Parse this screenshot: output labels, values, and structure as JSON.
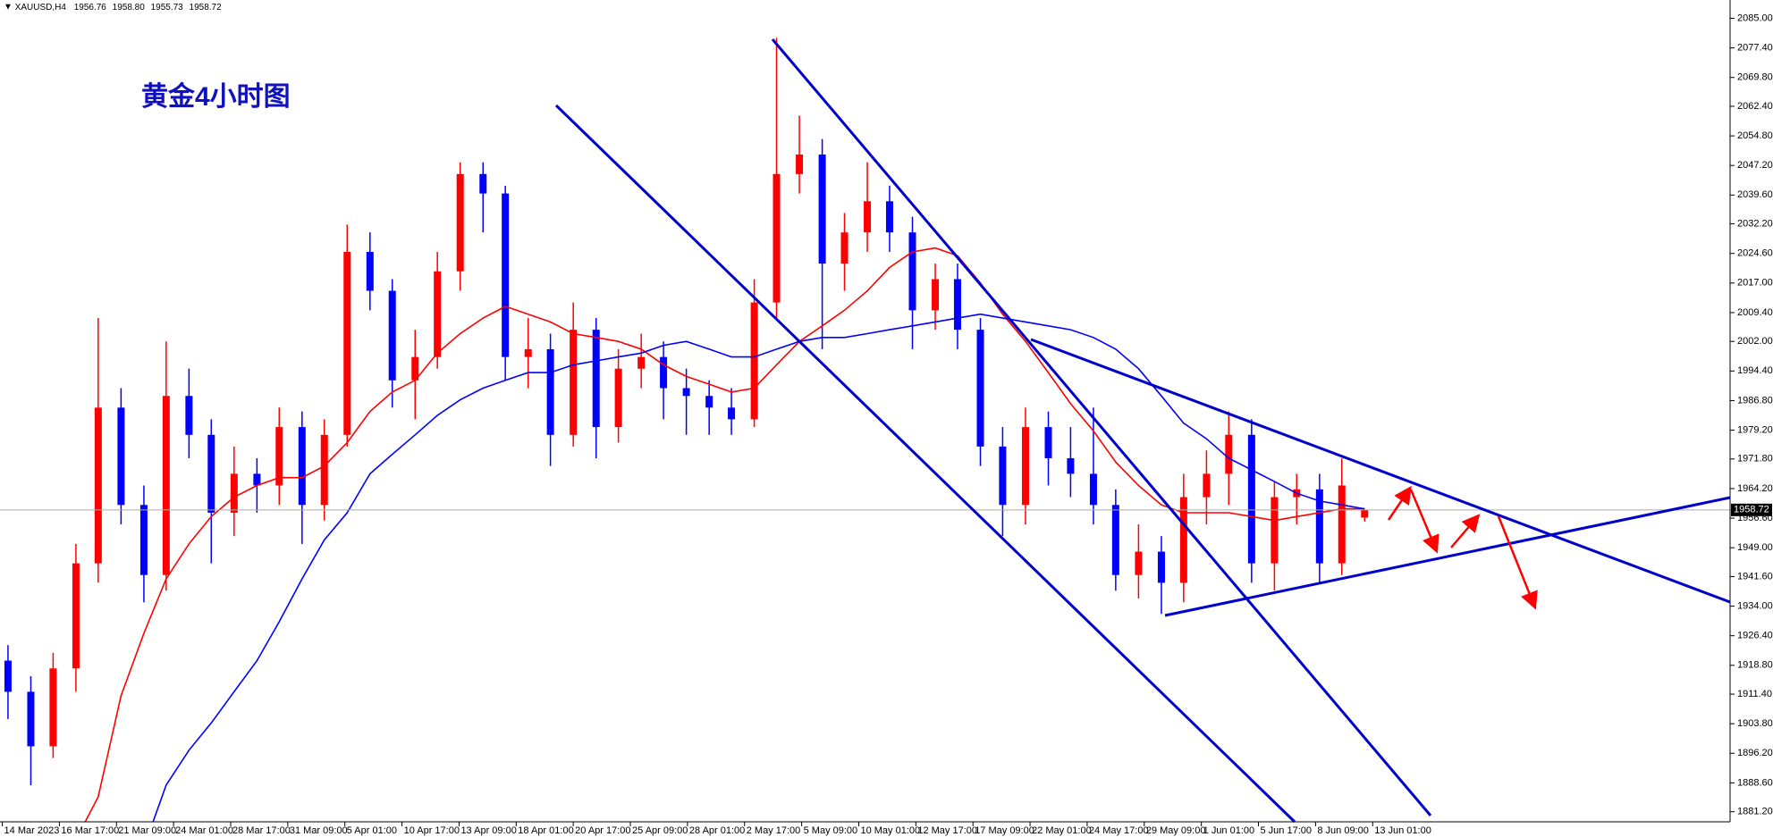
{
  "header": {
    "symbol": "XAUUSD,H4",
    "ohlc": [
      "1956.76",
      "1958.80",
      "1955.73",
      "1958.72"
    ]
  },
  "chart_data": {
    "type": "candlestick",
    "title": "黄金4小时图",
    "x": [
      0.1,
      0.5,
      0.89,
      1.29,
      1.68,
      2.08,
      2.48,
      2.87,
      3.27,
      3.66,
      4.06,
      4.46,
      4.85,
      5.25,
      5.64,
      6.04,
      6.44,
      6.83,
      7.23,
      7.62,
      8.02,
      8.42,
      8.81,
      9.21,
      9.6,
      10.0,
      10.4,
      10.79,
      11.19,
      11.58,
      11.98,
      12.38,
      12.77,
      13.17,
      13.56,
      13.96,
      14.36,
      14.75,
      15.15,
      15.54,
      15.94,
      16.34,
      16.73,
      17.13,
      17.52,
      17.92,
      18.32,
      18.71,
      19.11,
      19.5,
      19.9,
      20.3,
      20.69,
      21.09,
      21.48,
      21.88,
      22.28,
      22.67,
      23.07,
      23.46,
      23.86
    ],
    "open": [
      1920,
      1912,
      1898,
      1918,
      1945,
      1985,
      1960,
      1942,
      1988,
      1978,
      1958,
      1968,
      1965,
      1980,
      1960,
      1978,
      2025,
      2015,
      1992,
      1998,
      2020,
      2045,
      2040,
      1998,
      2000,
      1978,
      2005,
      1980,
      1995,
      1998,
      1990,
      1988,
      1985,
      1982,
      2012,
      2045,
      2050,
      2022,
      2030,
      2038,
      2030,
      2010,
      2018,
      2005,
      1975,
      1960,
      1980,
      1972,
      1968,
      1960,
      1942,
      1948,
      1940,
      1962,
      1968,
      1978,
      1945,
      1962,
      1964,
      1945,
      1956.76
    ],
    "high": [
      1924,
      1916,
      1922,
      1950,
      2008,
      1990,
      1965,
      2002,
      1995,
      1982,
      1975,
      1972,
      1985,
      1984,
      1982,
      2032,
      2030,
      2018,
      2005,
      2025,
      2048,
      2048,
      2042,
      2008,
      2004,
      2012,
      2008,
      2000,
      2004,
      2002,
      1995,
      1992,
      1990,
      2018,
      2080,
      2060,
      2054,
      2035,
      2048,
      2042,
      2034,
      2022,
      2022,
      2008,
      1980,
      1985,
      1984,
      1980,
      1985,
      1964,
      1955,
      1952,
      1968,
      1974,
      1984,
      1982,
      1966,
      1968,
      1968,
      1972,
      1958.8
    ],
    "low": [
      1905,
      1888,
      1895,
      1912,
      1940,
      1955,
      1935,
      1938,
      1972,
      1945,
      1952,
      1958,
      1960,
      1950,
      1956,
      1975,
      2010,
      1985,
      1982,
      1995,
      2015,
      2030,
      1992,
      1990,
      1970,
      1975,
      1972,
      1976,
      1990,
      1982,
      1978,
      1978,
      1978,
      1980,
      2008,
      2040,
      2000,
      2015,
      2025,
      2025,
      2000,
      2005,
      2000,
      1970,
      1952,
      1955,
      1965,
      1962,
      1955,
      1938,
      1936,
      1932,
      1935,
      1955,
      1960,
      1940,
      1938,
      1955,
      1940,
      1942,
      1955.73
    ],
    "close": [
      1912,
      1898,
      1918,
      1945,
      1985,
      1960,
      1942,
      1988,
      1978,
      1958,
      1968,
      1965,
      1980,
      1960,
      1978,
      2025,
      2015,
      1992,
      1998,
      2020,
      2045,
      2040,
      1998,
      2000,
      1978,
      2005,
      1980,
      1995,
      1998,
      1990,
      1988,
      1985,
      1982,
      2012,
      2045,
      2050,
      2022,
      2030,
      2038,
      2030,
      2010,
      2018,
      2005,
      1975,
      1960,
      1980,
      1972,
      1968,
      1960,
      1942,
      1948,
      1940,
      1962,
      1968,
      1978,
      1945,
      1962,
      1964,
      1945,
      1965,
      1958.72
    ],
    "up_color": "#ff0000",
    "down_color": "#0000ff",
    "series": [
      {
        "color": "#ff0000",
        "values": [
          null,
          null,
          null,
          1874,
          1885,
          1911,
          1927,
          1941,
          1950,
          1957,
          1962,
          1965,
          1967,
          1967,
          1970,
          1976,
          1984,
          1989,
          1992,
          1999,
          2004,
          2008,
          2011,
          2009,
          2007,
          2004,
          2003,
          2002,
          2000,
          1996,
          1993,
          1991,
          1989,
          1990,
          1996,
          2002,
          2006,
          2010,
          2015,
          2021,
          2025,
          2026,
          2024,
          2017,
          2009,
          2002,
          1994,
          1986,
          1979,
          1971,
          1965,
          1960,
          1958,
          1958,
          1958,
          1957,
          1956,
          1957,
          1958,
          1959,
          1959
        ]
      },
      {
        "color": "#0000ff",
        "values": [
          null,
          null,
          null,
          null,
          null,
          null,
          1872,
          1888,
          1897,
          1904,
          1912,
          1920,
          1930,
          1941,
          1951,
          1958,
          1968,
          1973,
          1978,
          1983,
          1987,
          1990,
          1992,
          1994,
          1994,
          1996,
          1997,
          1998,
          1999,
          2001,
          2002,
          2000,
          1998,
          1998,
          2000,
          2002,
          2003,
          2003,
          2004,
          2005,
          2006,
          2007,
          2008,
          2009,
          2008,
          2007,
          2006,
          2005,
          2003,
          2000,
          1995,
          1988,
          1981,
          1977,
          1972,
          1969,
          1966,
          1963,
          1961,
          1960,
          1959
        ]
      }
    ],
    "xlim": [
      -0.04,
      30.26
    ],
    "xticks": [
      {
        "value": 0,
        "label": "14 Mar 2023"
      },
      {
        "value": 1,
        "label": "16 Mar 17:00"
      },
      {
        "value": 2,
        "label": "21 Mar 09:00"
      },
      {
        "value": 3,
        "label": "24 Mar 01:00"
      },
      {
        "value": 4,
        "label": "28 Mar 17:00"
      },
      {
        "value": 5,
        "label": "31 Mar 09:00"
      },
      {
        "value": 6,
        "label": "5 Apr 01:00"
      },
      {
        "value": 7,
        "label": "10 Apr 17:00"
      },
      {
        "value": 8,
        "label": "13 Apr 09:00"
      },
      {
        "value": 9,
        "label": "18 Apr 01:00"
      },
      {
        "value": 10,
        "label": "20 Apr 17:00"
      },
      {
        "value": 11,
        "label": "25 Apr 09:00"
      },
      {
        "value": 12,
        "label": "28 Apr 01:00"
      },
      {
        "value": 13,
        "label": "2 May 17:00"
      },
      {
        "value": 14,
        "label": "5 May 09:00"
      },
      {
        "value": 15,
        "label": "10 May 01:00"
      },
      {
        "value": 16,
        "label": "12 May 17:00"
      },
      {
        "value": 17,
        "label": "17 May 09:00"
      },
      {
        "value": 18,
        "label": "22 May 01:00"
      },
      {
        "value": 19,
        "label": "24 May 17:00"
      },
      {
        "value": 20,
        "label": "29 May 09:00"
      },
      {
        "value": 21,
        "label": "1 Jun 01:00"
      },
      {
        "value": 22,
        "label": "5 Jun 17:00"
      },
      {
        "value": 23,
        "label": "8 Jun 09:00"
      },
      {
        "value": 24,
        "label": "13 Jun 01:00"
      }
    ],
    "ylim": [
      1878.6,
      2089.7
    ],
    "yticks": [
      {
        "value": 2085,
        "label": "2085.00"
      },
      {
        "value": 2077.4,
        "label": "2077.40"
      },
      {
        "value": 2069.8,
        "label": "2069.80"
      },
      {
        "value": 2062.4,
        "label": "2062.40"
      },
      {
        "value": 2054.8,
        "label": "2054.80"
      },
      {
        "value": 2047.2,
        "label": "2047.20"
      },
      {
        "value": 2039.6,
        "label": "2039.60"
      },
      {
        "value": 2032.2,
        "label": "2032.20"
      },
      {
        "value": 2024.6,
        "label": "2024.60"
      },
      {
        "value": 2017,
        "label": "2017.00"
      },
      {
        "value": 2009.4,
        "label": "2009.40"
      },
      {
        "value": 2002,
        "label": "2002.00"
      },
      {
        "value": 1994.4,
        "label": "1994.40"
      },
      {
        "value": 1986.8,
        "label": "1986.80"
      },
      {
        "value": 1979.2,
        "label": "1979.20"
      },
      {
        "value": 1971.8,
        "label": "1971.80"
      },
      {
        "value": 1964.2,
        "label": "1964.20"
      },
      {
        "value": 1956.6,
        "label": "1956.60"
      },
      {
        "value": 1949,
        "label": "1949.00"
      },
      {
        "value": 1941.6,
        "label": "1941.60"
      },
      {
        "value": 1934,
        "label": "1934.00"
      },
      {
        "value": 1926.4,
        "label": "1926.40"
      },
      {
        "value": 1918.8,
        "label": "1918.80"
      },
      {
        "value": 1911.4,
        "label": "1911.40"
      },
      {
        "value": 1903.8,
        "label": "1903.80"
      },
      {
        "value": 1896.2,
        "label": "1896.20"
      },
      {
        "value": 1888.6,
        "label": "1888.60"
      },
      {
        "value": 1881.2,
        "label": "1881.20"
      }
    ],
    "grid": false
  }
}
